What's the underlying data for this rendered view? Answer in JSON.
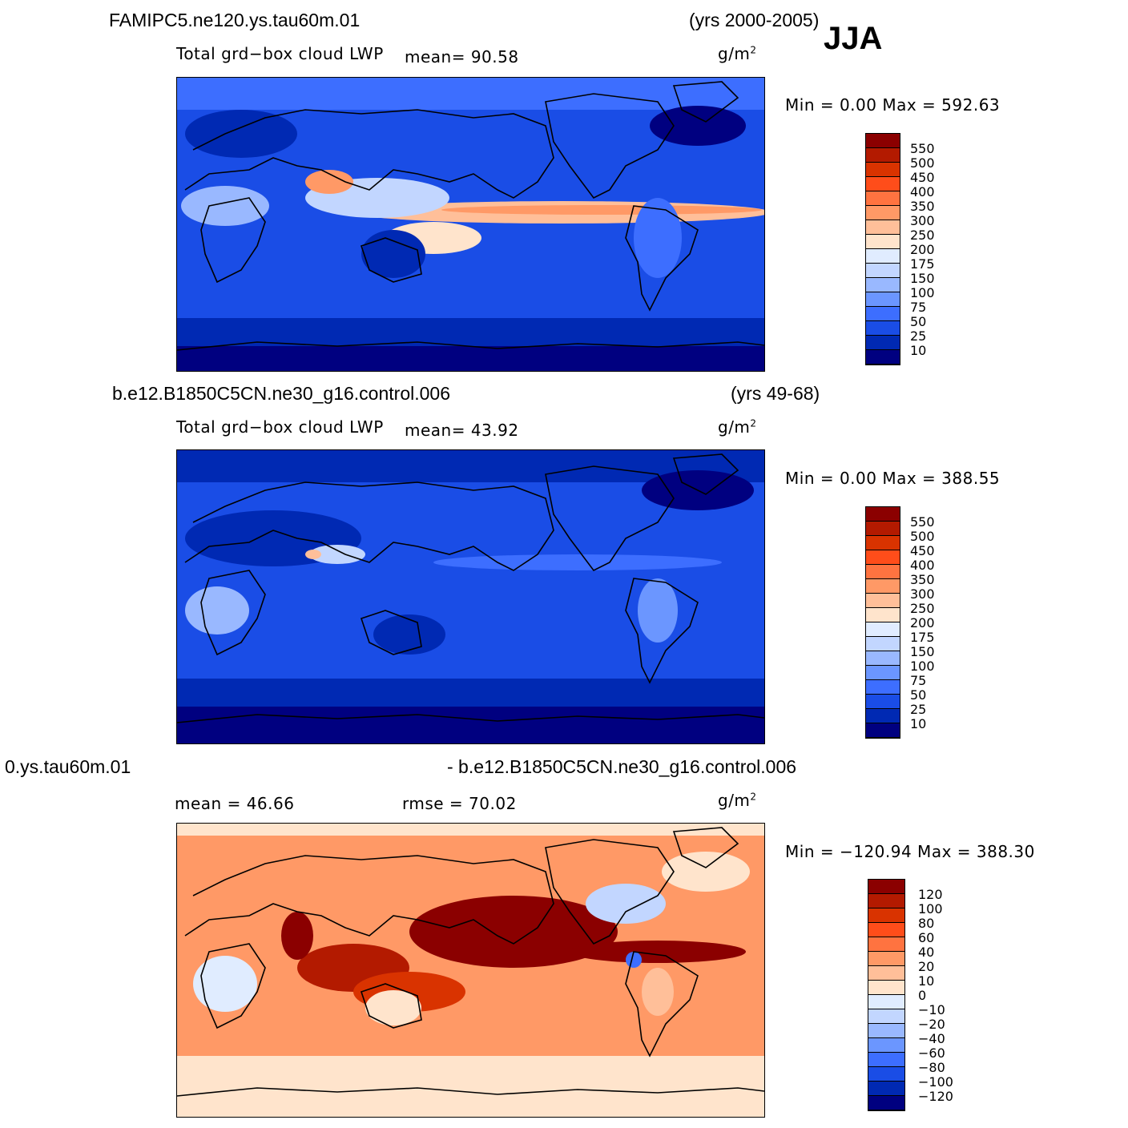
{
  "season": "JJA",
  "panels": [
    {
      "case": "FAMIPC5.ne120.ys.tau60m.01",
      "years": "(yrs 2000-2005)",
      "variable": "Total grd−box cloud LWP",
      "stat1": "mean=   90.58",
      "units": "g/m",
      "minmax": "Min =    0.00  Max  =  592.63",
      "palette": "blue-red"
    },
    {
      "case": "b.e12.B1850C5CN.ne30_g16.control.006",
      "years": "(yrs 49-68)",
      "variable": "Total grd−box cloud LWP",
      "stat1": "mean=   43.92",
      "units": "g/m",
      "minmax": "Min =    0.00  Max  =  388.55",
      "palette": "blue-dominant"
    },
    {
      "case": "0.ys.tau60m.01",
      "case_right": "- b.e12.B1850C5CN.ne30_g16.control.006",
      "stat1": "mean  =   46.66",
      "stat2": "rmse  =   70.02",
      "units": "g/m",
      "minmax": "Min  = −120.94  Max  =  388.30",
      "palette": "diff"
    }
  ],
  "colorbars": {
    "abs_levels": [
      "550",
      "500",
      "450",
      "400",
      "350",
      "300",
      "250",
      "200",
      "175",
      "150",
      "100",
      "75",
      "50",
      "25",
      "10"
    ],
    "abs_colors": [
      "#8b0000",
      "#b31a00",
      "#d93300",
      "#ff4d1a",
      "#ff7340",
      "#ff9966",
      "#ffbf99",
      "#ffe4cc",
      "#e0ecff",
      "#c2d6ff",
      "#99b8ff",
      "#6b96ff",
      "#3d6eff",
      "#1a4de6",
      "#0029b3",
      "#000080"
    ],
    "diff_levels": [
      "120",
      "100",
      "80",
      "60",
      "40",
      "20",
      "10",
      "0",
      "−10",
      "−20",
      "−40",
      "−60",
      "−80",
      "−100",
      "−120"
    ],
    "diff_colors": [
      "#8b0000",
      "#b31a00",
      "#d93300",
      "#ff4d1a",
      "#ff7340",
      "#ff9966",
      "#ffbf99",
      "#ffe4cc",
      "#e0ecff",
      "#c2d6ff",
      "#99b8ff",
      "#6b96ff",
      "#3d6eff",
      "#1a4de6",
      "#0029b3",
      "#000080"
    ]
  }
}
